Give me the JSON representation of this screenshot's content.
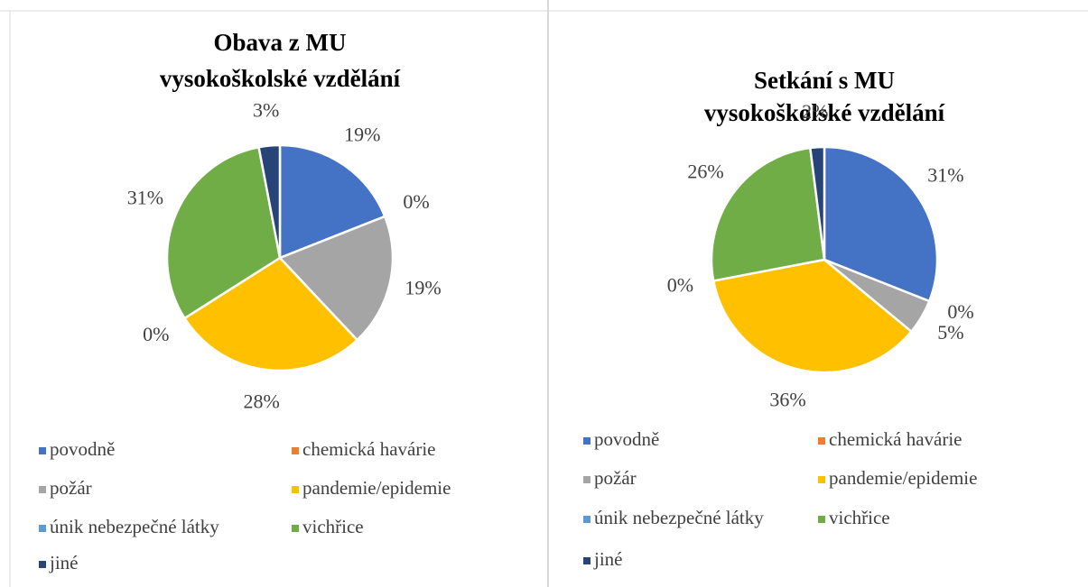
{
  "chart_data": [
    {
      "type": "pie",
      "title": [
        "Obava z MU",
        "vysokoškolské vzdělání"
      ],
      "categories": [
        "povodně",
        "chemická havárie",
        "požár",
        "pandemie/epidemie",
        "únik nebezpečné látky",
        "vichřice",
        "jiné"
      ],
      "values": [
        19,
        0,
        19,
        28,
        0,
        31,
        3
      ],
      "value_labels": [
        "19%",
        "0%",
        "19%",
        "28%",
        "0%",
        "31%",
        "3%"
      ],
      "colors": [
        "#4472c4",
        "#ed7d31",
        "#a5a5a5",
        "#ffc000",
        "#5b9bd5",
        "#70ad47",
        "#264478"
      ],
      "legend": "bottom"
    },
    {
      "type": "pie",
      "title": [
        "Setkání s MU",
        "vysokoškolské vzdělání"
      ],
      "categories": [
        "povodně",
        "chemická havárie",
        "požár",
        "pandemie/epidemie",
        "únik nebezpečné látky",
        "vichřice",
        "jiné"
      ],
      "values": [
        31,
        0,
        5,
        36,
        0,
        26,
        2
      ],
      "value_labels": [
        "31%",
        "0%",
        "5%",
        "36%",
        "0%",
        "26%",
        "2%"
      ],
      "colors": [
        "#4472c4",
        "#ed7d31",
        "#a5a5a5",
        "#ffc000",
        "#5b9bd5",
        "#70ad47",
        "#264478"
      ],
      "legend": "bottom"
    }
  ]
}
